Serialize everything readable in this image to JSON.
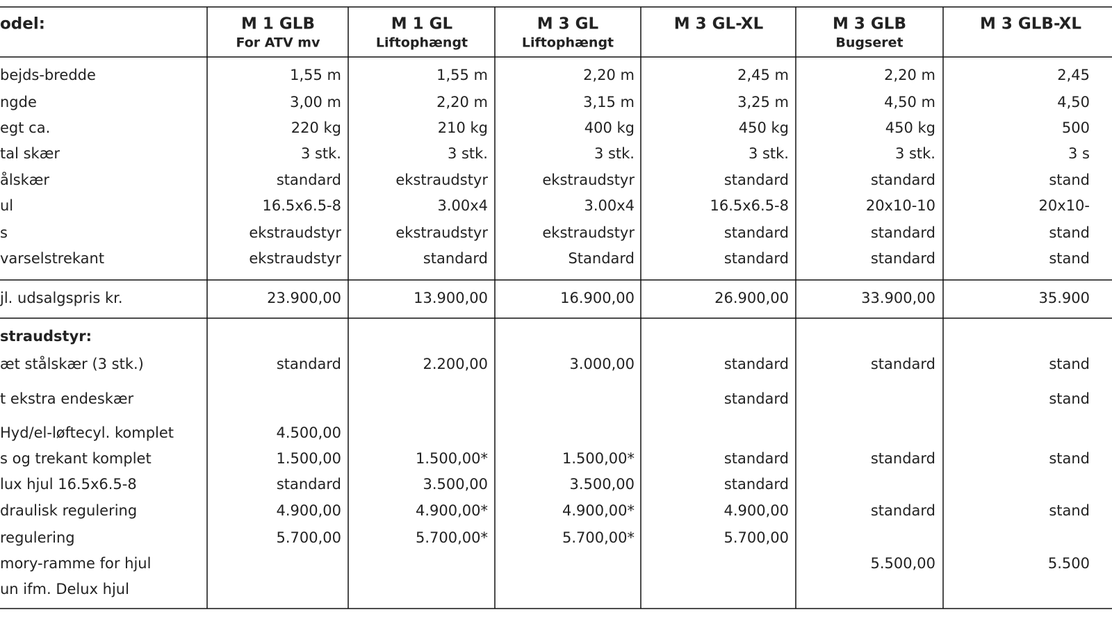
{
  "table": {
    "header_label": "odel:",
    "columns": [
      {
        "title": "M 1 GLB",
        "subtitle": "For ATV mv"
      },
      {
        "title": "M 1 GL",
        "subtitle": "Liftophængt"
      },
      {
        "title": "M 3 GL",
        "subtitle": "Liftophængt"
      },
      {
        "title": "M 3 GL-XL"
      },
      {
        "title": "M 3 GLB",
        "subtitle": "Bugseret"
      },
      {
        "title": "M 3 GLB-XL"
      }
    ],
    "specs": [
      [
        "bejds-bredde",
        "1,55 m",
        "1,55 m",
        "2,20 m",
        "2,45 m",
        "2,20 m",
        "2,45"
      ],
      [
        "ngde",
        "3,00 m",
        "2,20 m",
        "3,15 m",
        "3,25 m",
        "4,50 m",
        "4,50"
      ],
      [
        "egt ca.",
        "220 kg",
        "210 kg",
        "400 kg",
        "450 kg",
        "450 kg",
        "500"
      ],
      [
        "tal skær",
        "3 stk.",
        "3 stk.",
        "3 stk.",
        "3 stk.",
        "3 stk.",
        "3 s"
      ],
      [
        "ålskær",
        "standard",
        "ekstraudstyr",
        "ekstraudstyr",
        "standard",
        "standard",
        "stand"
      ],
      [
        "ul",
        "16.5x6.5-8",
        "3.00x4",
        "3.00x4",
        "16.5x6.5-8",
        "20x10-10",
        "20x10-"
      ],
      [
        "s",
        "ekstraudstyr",
        "ekstraudstyr",
        "ekstraudstyr",
        "standard",
        "standard",
        "stand"
      ],
      [
        "varselstrekant",
        "ekstraudstyr",
        "standard",
        "Standard",
        "standard",
        "standard",
        "stand"
      ]
    ],
    "price": [
      "jl. udsalgspris kr.",
      "23.900,00",
      "13.900,00",
      "16.900,00",
      "26.900,00",
      "33.900,00",
      "35.900"
    ],
    "extras_title": "straudstyr:",
    "extras": [
      [
        "æt stålskær (3 stk.)",
        "standard",
        "2.200,00",
        "3.000,00",
        "standard",
        "standard",
        "stand"
      ],
      [
        "t ekstra endeskær",
        null,
        null,
        null,
        "standard",
        null,
        "stand"
      ],
      [
        "Hyd/el-løftecyl. komplet",
        "4.500,00",
        null,
        null,
        null,
        null,
        null
      ],
      [
        "s og trekant komplet",
        "1.500,00",
        "1.500,00*",
        "1.500,00*",
        "standard",
        "standard",
        "stand"
      ],
      [
        "lux hjul 16.5x6.5-8",
        "standard",
        "3.500,00",
        "3.500,00",
        "standard",
        null,
        null
      ],
      [
        "draulisk regulering",
        "4.900,00",
        "4.900,00*",
        "4.900,00*",
        "4.900,00",
        "standard",
        "stand"
      ],
      [
        "regulering",
        "5.700,00",
        "5.700,00*",
        "5.700,00*",
        "5.700,00",
        null,
        null
      ],
      [
        "mory-ramme for hjul",
        null,
        null,
        null,
        null,
        "5.500,00",
        "5.500"
      ],
      [
        "un ifm. Delux hjul",
        null,
        null,
        null,
        null,
        null,
        null
      ]
    ]
  }
}
